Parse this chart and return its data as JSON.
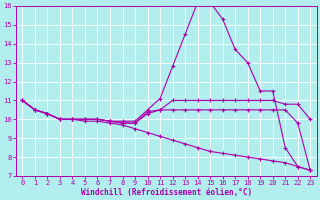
{
  "x": [
    0,
    1,
    2,
    3,
    4,
    5,
    6,
    7,
    8,
    9,
    10,
    11,
    12,
    13,
    14,
    15,
    16,
    17,
    18,
    19,
    20,
    21,
    22,
    23
  ],
  "line1": [
    11.0,
    10.5,
    10.3,
    10.0,
    10.0,
    10.0,
    10.0,
    9.9,
    9.9,
    9.9,
    10.5,
    11.1,
    12.8,
    14.5,
    16.2,
    16.2,
    15.3,
    13.7,
    13.0,
    11.5,
    11.5,
    8.5,
    7.5,
    7.3
  ],
  "line2": [
    11.0,
    10.5,
    10.3,
    10.0,
    10.0,
    10.0,
    10.0,
    9.9,
    9.8,
    9.8,
    10.4,
    10.5,
    11.0,
    11.0,
    11.0,
    11.0,
    11.0,
    11.0,
    11.0,
    11.0,
    11.0,
    10.8,
    10.8,
    10.0
  ],
  "line3": [
    11.0,
    10.5,
    10.3,
    10.0,
    10.0,
    10.0,
    10.0,
    9.9,
    9.8,
    9.8,
    10.3,
    10.5,
    10.5,
    10.5,
    10.5,
    10.5,
    10.5,
    10.5,
    10.5,
    10.5,
    10.5,
    10.5,
    9.8,
    7.3
  ],
  "line4": [
    11.0,
    10.5,
    10.3,
    10.0,
    10.0,
    9.9,
    9.9,
    9.8,
    9.7,
    9.5,
    9.3,
    9.1,
    8.9,
    8.7,
    8.5,
    8.3,
    8.2,
    8.1,
    8.0,
    7.9,
    7.8,
    7.7,
    7.5,
    7.3
  ],
  "line_color": "#aa00aa",
  "bg_color": "#b2eeee",
  "grid_color": "#cccccc",
  "xlabel": "Windchill (Refroidissement éolien,°C)",
  "ylim": [
    7,
    16
  ],
  "ytick_top": 16,
  "xticks": [
    0,
    1,
    2,
    3,
    4,
    5,
    6,
    7,
    8,
    9,
    10,
    11,
    12,
    13,
    14,
    15,
    16,
    17,
    18,
    19,
    20,
    21,
    22,
    23
  ],
  "yticks": [
    7,
    8,
    9,
    10,
    11,
    12,
    13,
    14,
    15,
    16
  ]
}
